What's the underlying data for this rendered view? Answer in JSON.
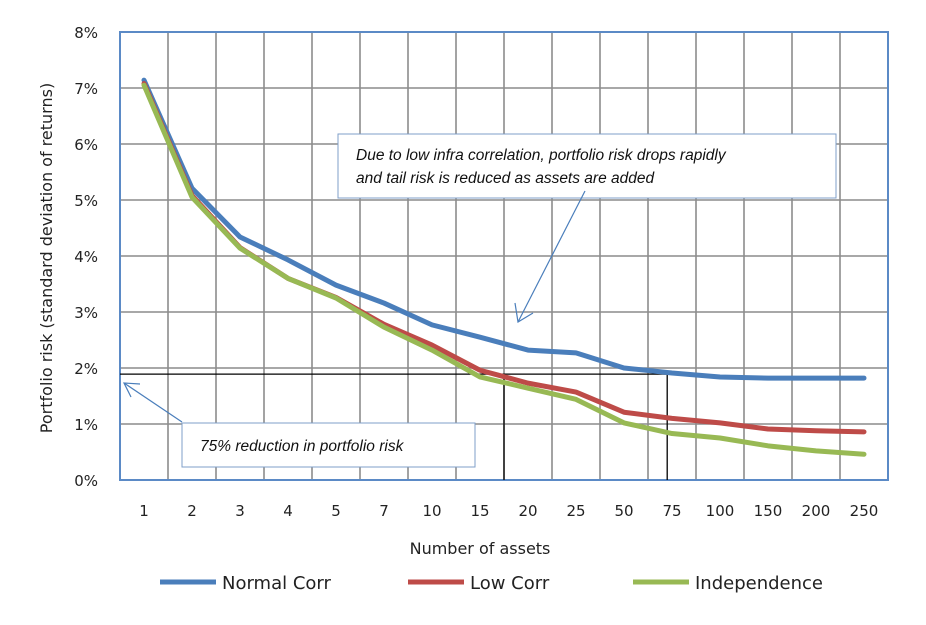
{
  "chart_data": {
    "type": "line",
    "title": "",
    "xlabel": "Number of assets",
    "ylabel": "Portfolio risk (standard deviation of returns)",
    "categories": [
      "1",
      "2",
      "3",
      "4",
      "5",
      "7",
      "10",
      "15",
      "20",
      "25",
      "50",
      "75",
      "100",
      "150",
      "200",
      "250"
    ],
    "ylim": [
      0,
      8
    ],
    "yticks": [
      "0%",
      "1%",
      "2%",
      "3%",
      "4%",
      "5%",
      "6%",
      "7%",
      "8%"
    ],
    "grid": true,
    "legend_position": "bottom",
    "series": [
      {
        "name": "Normal Corr",
        "color": "#4a7ebb",
        "values": [
          7.14,
          5.21,
          4.34,
          3.93,
          3.48,
          3.16,
          2.77,
          2.55,
          2.32,
          2.27,
          2.0,
          1.91,
          1.84,
          1.82,
          1.82,
          1.82
        ]
      },
      {
        "name": "Low Corr",
        "color": "#be4b48",
        "values": [
          7.08,
          5.08,
          4.15,
          3.6,
          3.26,
          2.78,
          2.41,
          1.96,
          1.73,
          1.57,
          1.21,
          1.1,
          1.02,
          0.91,
          0.88,
          0.86
        ]
      },
      {
        "name": "Independence",
        "color": "#98b954",
        "values": [
          7.05,
          5.05,
          4.14,
          3.6,
          3.25,
          2.73,
          2.32,
          1.84,
          1.64,
          1.44,
          1.02,
          0.83,
          0.75,
          0.61,
          0.52,
          0.46
        ]
      }
    ],
    "reference_lines": {
      "y_value": 1.89,
      "x_categories": [
        "20",
        "75"
      ]
    },
    "annotations": [
      {
        "text_lines": [
          "Due to low infra correlation, portfolio risk drops rapidly",
          "and tail risk is reduced as assets are added"
        ]
      },
      {
        "text_lines": [
          "75% reduction in portfolio risk"
        ]
      }
    ],
    "colors": {
      "grid": "#8c8c8c",
      "border": "#5b8ac6",
      "annotation_arrow": "#4a7ebb"
    }
  }
}
